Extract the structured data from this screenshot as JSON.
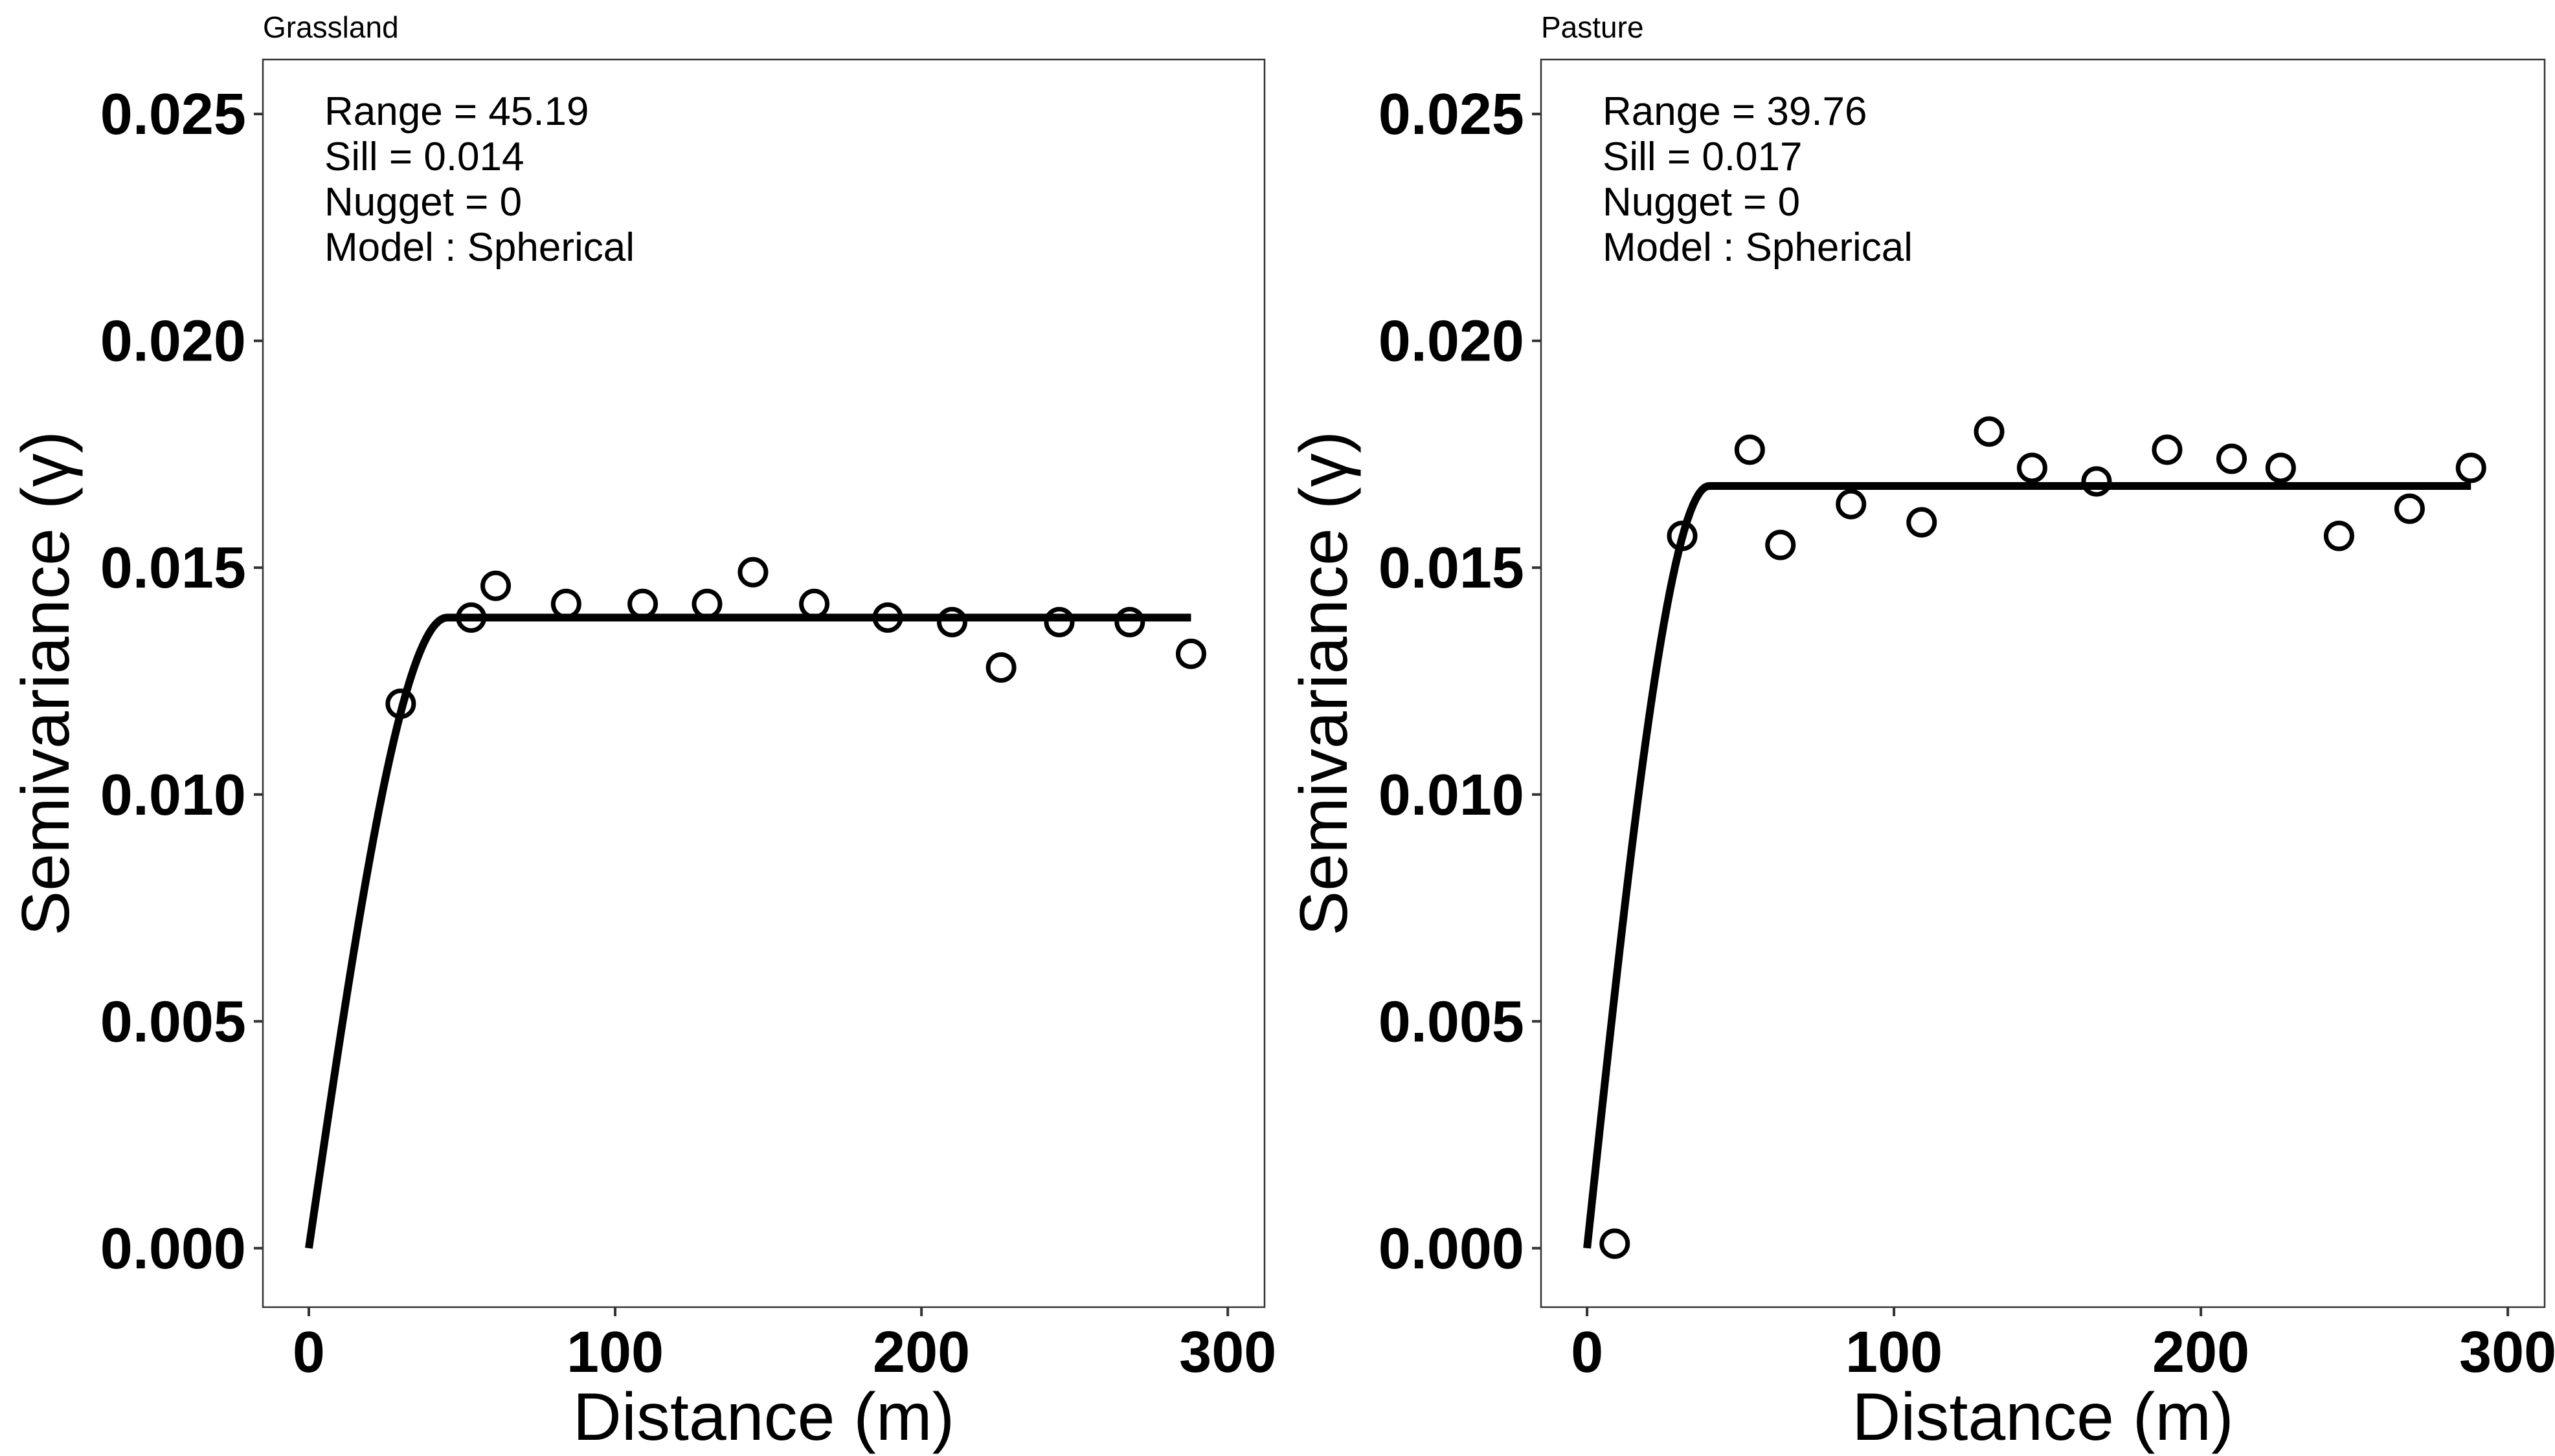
{
  "chart_data": [
    {
      "type": "scatter",
      "title": "Grassland",
      "xlabel": "Distance (m)",
      "ylabel": "Semivariance (γ)",
      "xlim": [
        -15,
        312
      ],
      "ylim": [
        -0.0013,
        0.0262
      ],
      "xticks": [
        0,
        100,
        200,
        300
      ],
      "xtick_labels": [
        "0",
        "100",
        "200",
        "300"
      ],
      "yticks": [
        0.0,
        0.005,
        0.01,
        0.015,
        0.02,
        0.025
      ],
      "ytick_labels": [
        "0.000",
        "0.005",
        "0.010",
        "0.015",
        "0.020",
        "0.025"
      ],
      "grid": false,
      "annotations": [
        "Range = 45.19",
        "Sill = 0.014",
        "Nugget = 0",
        "Model : Spherical"
      ],
      "model": {
        "type": "spherical",
        "range": 45.19,
        "sill": 0.0139,
        "nugget": 0,
        "x_max": 288
      },
      "points": {
        "x": [
          30,
          53,
          61,
          84,
          109,
          130,
          145,
          165,
          189,
          210,
          226,
          245,
          268,
          288
        ],
        "y": [
          0.012,
          0.0139,
          0.0146,
          0.0142,
          0.0142,
          0.0142,
          0.0149,
          0.0142,
          0.0139,
          0.0138,
          0.0128,
          0.0138,
          0.0138,
          0.0131
        ]
      }
    },
    {
      "type": "scatter",
      "title": "Pasture",
      "xlabel": "Distance (m)",
      "ylabel": "Semivariance (γ)",
      "xlim": [
        -15,
        312
      ],
      "ylim": [
        -0.0013,
        0.0262
      ],
      "xticks": [
        0,
        100,
        200,
        300
      ],
      "xtick_labels": [
        "0",
        "100",
        "200",
        "300"
      ],
      "yticks": [
        0.0,
        0.005,
        0.01,
        0.015,
        0.02,
        0.025
      ],
      "ytick_labels": [
        "0.000",
        "0.005",
        "0.010",
        "0.015",
        "0.020",
        "0.025"
      ],
      "grid": false,
      "annotations": [
        "Range = 39.76",
        "Sill = 0.017",
        "Nugget = 0",
        "Model : Spherical"
      ],
      "model": {
        "type": "spherical",
        "range": 39.76,
        "sill": 0.0168,
        "nugget": 0,
        "x_max": 288
      },
      "points": {
        "x": [
          9,
          31,
          53,
          63,
          86,
          109,
          131,
          145,
          166,
          189,
          210,
          226,
          245,
          268,
          288
        ],
        "y": [
          0.0001,
          0.0157,
          0.0176,
          0.0155,
          0.0164,
          0.016,
          0.018,
          0.0172,
          0.0169,
          0.0176,
          0.0174,
          0.0172,
          0.0157,
          0.0163,
          0.0172
        ]
      }
    }
  ]
}
